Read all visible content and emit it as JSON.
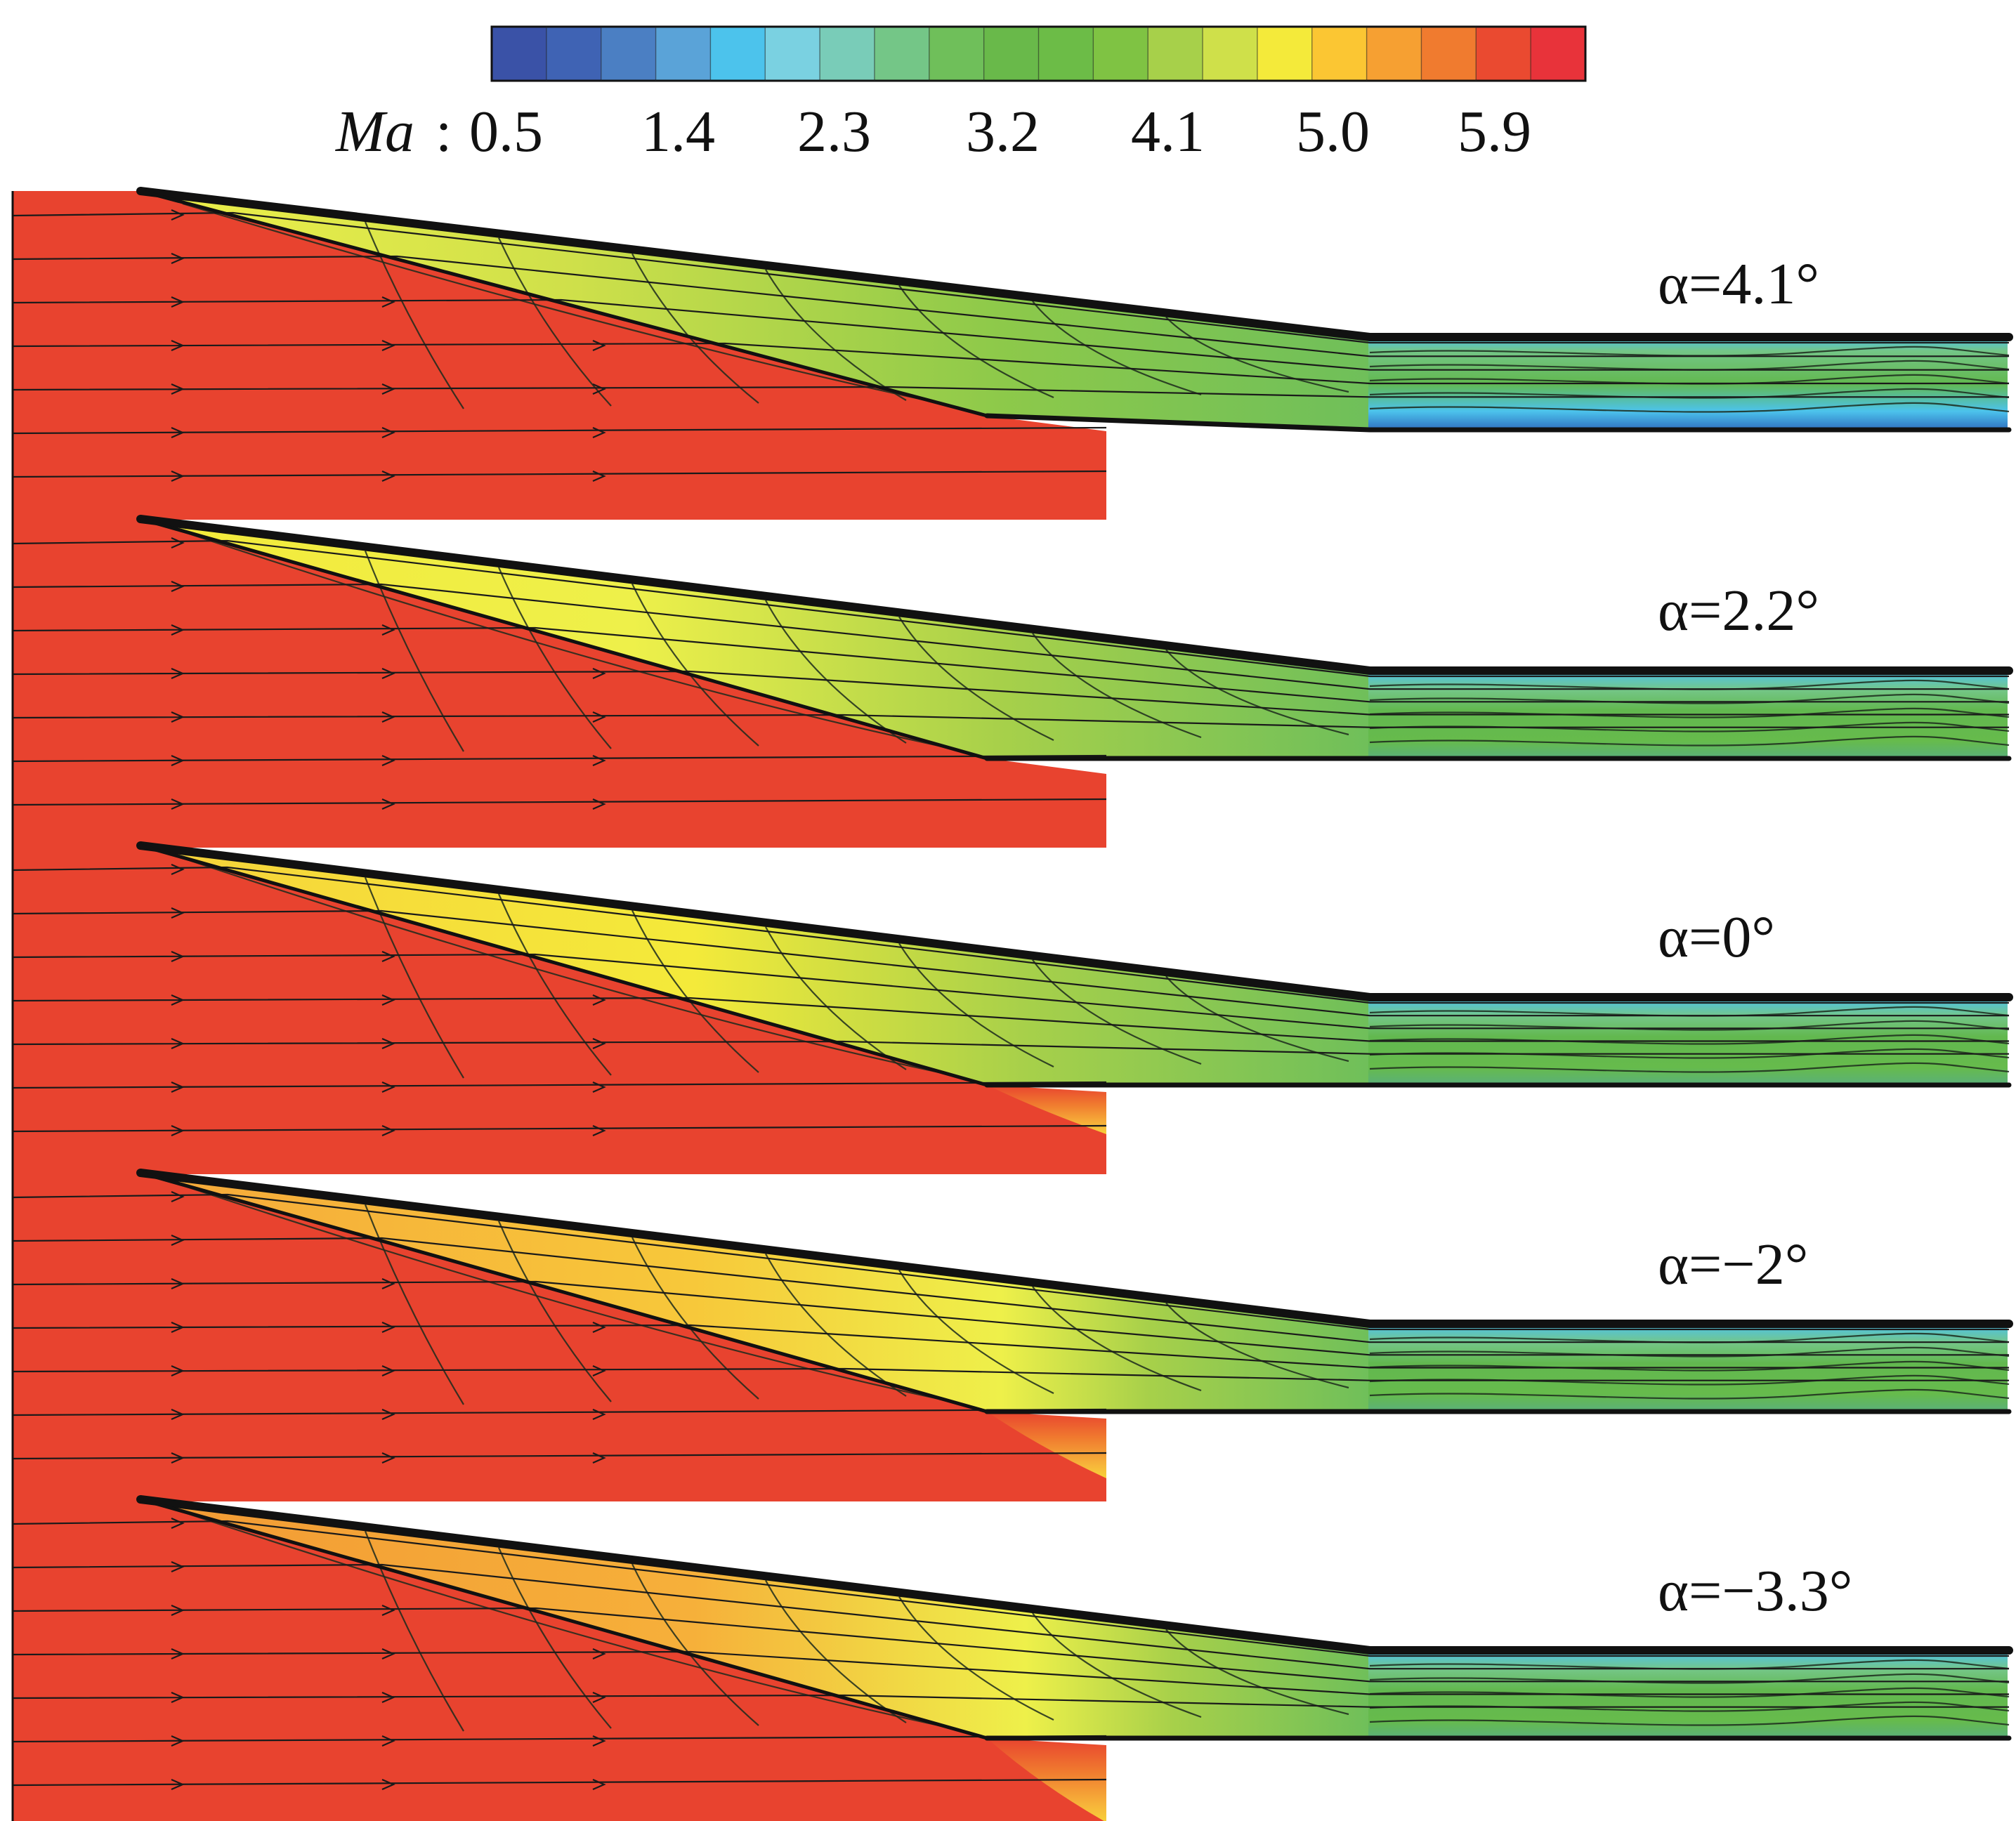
{
  "colorbar": {
    "variable": "Ma",
    "ticks": [
      "0.5",
      "1.4",
      "2.3",
      "3.2",
      "4.1",
      "5.0",
      "5.9"
    ],
    "colors": [
      "#3a52a7",
      "#3f63b4",
      "#4b7fc3",
      "#5aa3d8",
      "#4cc3ec",
      "#7ad1e1",
      "#79ccb8",
      "#74c687",
      "#6fbf5a",
      "#69b94a",
      "#6cbc47",
      "#7fc343",
      "#a7d04a",
      "#cfe04a",
      "#f4ea3a",
      "#fbc633",
      "#f6a032",
      "#f07b2f",
      "#ea4a30",
      "#e8333a"
    ]
  },
  "panels": [
    {
      "id": "p1",
      "alpha_label": "α=4.1°",
      "alpha_deg": 4.1
    },
    {
      "id": "p2",
      "alpha_label": "α=2.2°",
      "alpha_deg": 2.2
    },
    {
      "id": "p3",
      "alpha_label": "α=0°",
      "alpha_deg": 0
    },
    {
      "id": "p4",
      "alpha_label": "α=−2°",
      "alpha_deg": -2
    },
    {
      "id": "p5",
      "alpha_label": "α=−3.3°",
      "alpha_deg": -3.3
    }
  ],
  "palette": {
    "freestream": "#e8432f",
    "compression_yellow": "#eef04a",
    "compression_orange": "#f7b53a",
    "isolator_green": "#62b84f",
    "isolator_cyan": "#3fc1d8",
    "isolator_blue": "#2f6fc0"
  }
}
